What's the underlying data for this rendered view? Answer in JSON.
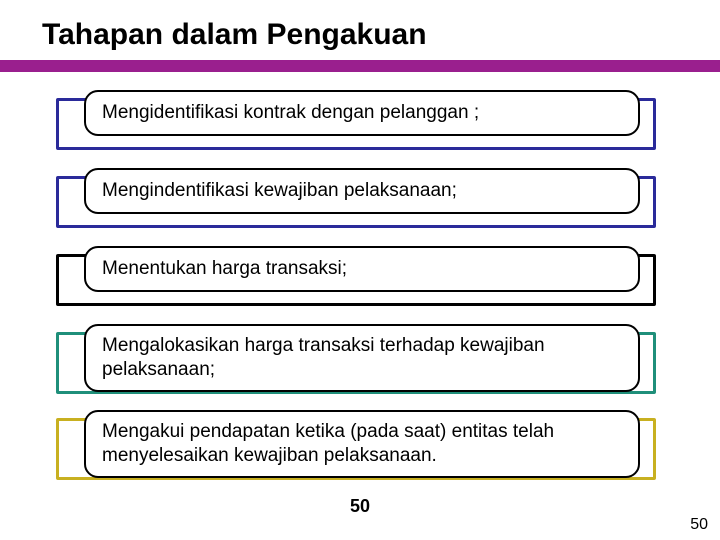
{
  "title": "Tahapan dalam Pengakuan",
  "accent_bar_color": "#9a1f8e",
  "stages": [
    {
      "text": "Mengidentifikasi kontrak dengan pelanggan ;",
      "border_color": "#2a2a9a",
      "lines": 1
    },
    {
      "text": "Mengindentifikasi kewajiban pelaksanaan;",
      "border_color": "#2a2a9a",
      "lines": 1
    },
    {
      "text": "Menentukan harga transaksi;",
      "border_color": "#000000",
      "lines": 1
    },
    {
      "text": "Mengalokasikan harga transaksi terhadap kewajiban pelaksanaan;",
      "border_color": "#1f8f7a",
      "lines": 2
    },
    {
      "text": "Mengakui pendapatan ketika (pada saat) entitas telah menyelesaikan kewajiban pelaksanaan.",
      "border_color": "#c8b020",
      "lines": 2
    }
  ],
  "layout": {
    "stage_tops": [
      90,
      168,
      246,
      324,
      410
    ]
  },
  "page_number_center": "50",
  "page_number_corner": "50"
}
